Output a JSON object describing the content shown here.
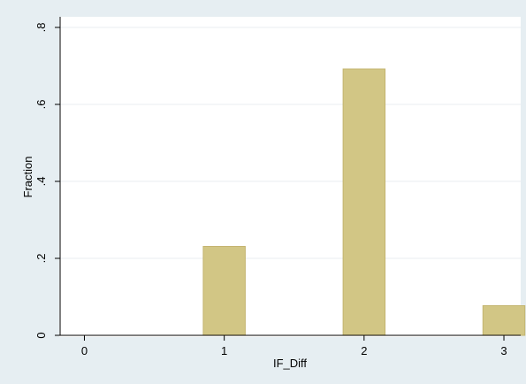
{
  "chart_data": {
    "type": "bar",
    "xlabel": "IF_Diff",
    "ylabel": "Fraction",
    "x_ticks": [
      0,
      1,
      2,
      3
    ],
    "x_tick_labels": [
      "0",
      "1",
      "2",
      "3"
    ],
    "y_ticks": [
      0,
      0.2,
      0.4,
      0.6,
      0.8
    ],
    "y_tick_labels": [
      "0",
      ".2",
      ".4",
      ".6",
      ".8"
    ],
    "xlim": [
      -0.18,
      3.12
    ],
    "ylim": [
      0,
      0.8
    ],
    "bars": [
      {
        "x": 1,
        "value": 0.231
      },
      {
        "x": 2,
        "value": 0.692
      },
      {
        "x": 3,
        "value": 0.077
      }
    ],
    "bar_width": 0.3,
    "grid": "horizontal",
    "legend": "none",
    "colors": {
      "outer_background": "#e6eef2",
      "plot_background": "#ffffff",
      "bar_fill": "#d2c685",
      "bar_edge": "#c3b46e",
      "grid": "#e9eef1",
      "axis": "#000000"
    }
  }
}
